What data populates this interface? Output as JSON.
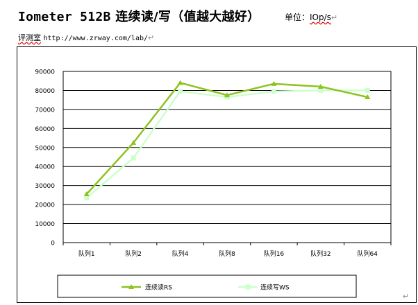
{
  "header": {
    "title_strong": "Iometer 512B",
    "title_rest": " 连续读/写（值越大越好）",
    "unit_label": "单位：",
    "unit_value": "IOp/s",
    "lab_label": "评测室",
    "lab_url": "http://www.zrway.com/lab/",
    "para_mark": "↵"
  },
  "colors": {
    "read": "#8dc21f",
    "write": "#ccffcc",
    "grid": "#000000",
    "text": "#000000"
  },
  "chart_data": {
    "type": "line",
    "categories": [
      "队列1",
      "队列2",
      "队列4",
      "队列8",
      "队列16",
      "队列32",
      "队列64"
    ],
    "series": [
      {
        "name": "连续读RS",
        "values": [
          25500,
          52500,
          84000,
          77500,
          83500,
          82000,
          76500
        ]
      },
      {
        "name": "连续写WS",
        "values": [
          23500,
          44500,
          79500,
          76500,
          79500,
          80000,
          80000
        ]
      }
    ],
    "ylim": [
      0,
      90000
    ],
    "yticks": [
      "0",
      "10000",
      "20000",
      "30000",
      "40000",
      "50000",
      "60000",
      "70000",
      "80000",
      "90000"
    ],
    "grid": true,
    "legend_position": "bottom"
  }
}
